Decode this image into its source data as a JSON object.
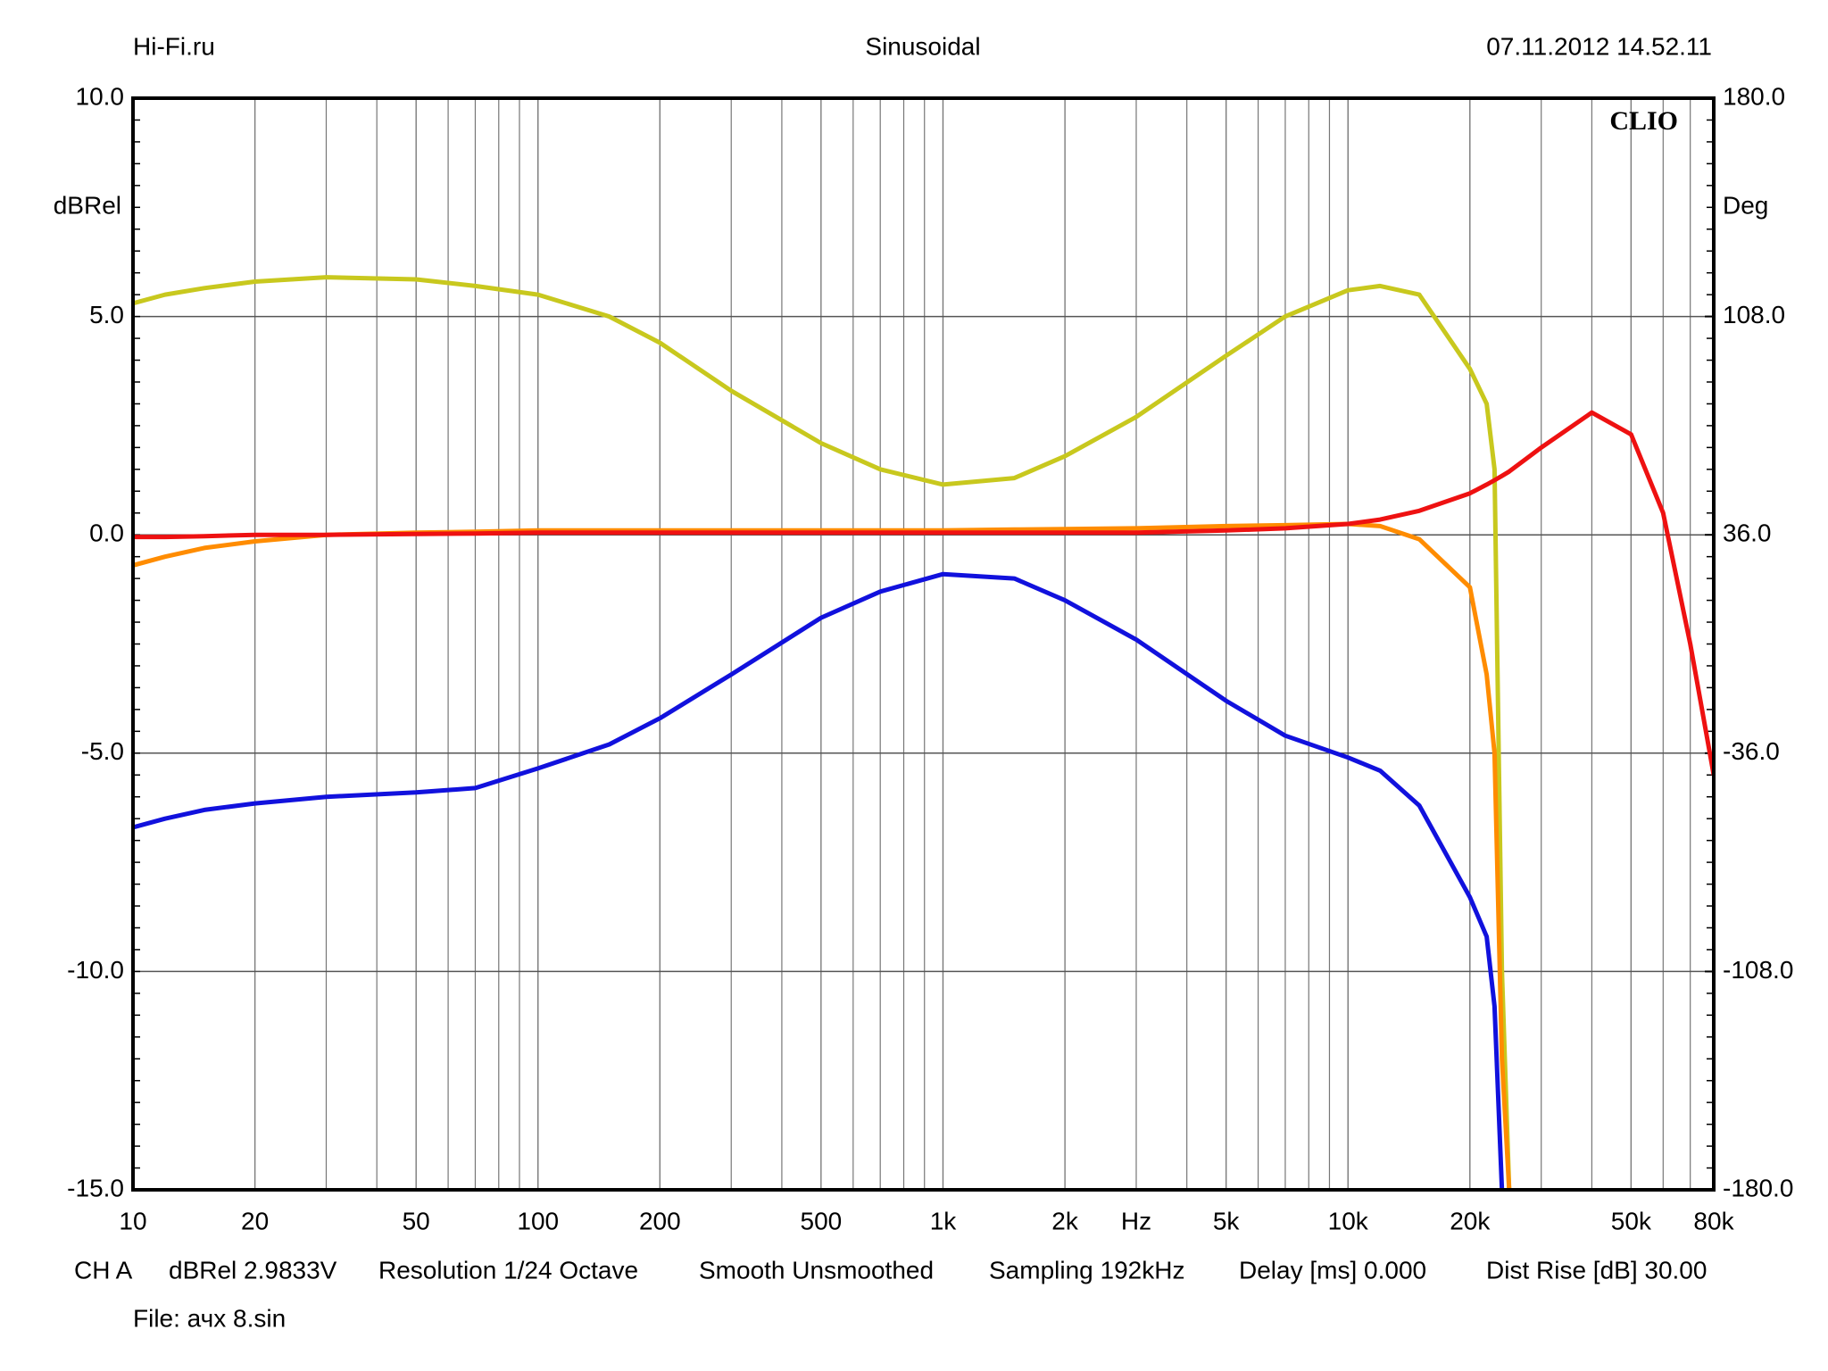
{
  "header": {
    "left": "Hi-Fi.ru",
    "center": "Sinusoidal",
    "right": "07.11.2012 14.52.11"
  },
  "chart_data": {
    "type": "line",
    "watermark": "CLIO",
    "y_label": "dBRel",
    "y2_label": "Deg",
    "x_label": "Hz",
    "log_x": true,
    "grid": true,
    "x": [
      10,
      12,
      15,
      20,
      30,
      50,
      70,
      100,
      150,
      200,
      300,
      500,
      700,
      1000,
      1500,
      2000,
      3000,
      5000,
      7000,
      10000,
      12000,
      15000,
      20000,
      22000,
      23000,
      24000,
      25000,
      30000,
      40000,
      50000,
      60000,
      70000,
      80000
    ],
    "xlim": [
      10,
      80000
    ],
    "xticks": [
      10,
      20,
      50,
      100,
      200,
      500,
      {
        "value": 1000,
        "label": "1k"
      },
      {
        "value": 2000,
        "label": "2k"
      },
      {
        "value": 5000,
        "label": "5k"
      },
      {
        "value": 10000,
        "label": "10k"
      },
      {
        "value": 20000,
        "label": "20k"
      },
      {
        "value": 50000,
        "label": "50k"
      },
      {
        "value": 80000,
        "label": "80k"
      }
    ],
    "ylim": [
      -15,
      10
    ],
    "yticks": [
      {
        "value": 10,
        "label": "10.0"
      },
      {
        "value": 5,
        "label": "5.0"
      },
      {
        "value": 0,
        "label": "0.0"
      },
      {
        "value": -5,
        "label": "-5.0"
      },
      {
        "value": -10,
        "label": "-10.0"
      },
      {
        "value": -15,
        "label": "-15.0"
      }
    ],
    "y2lim": [
      -180,
      180
    ],
    "y2ticks": [
      {
        "value": 180,
        "label": "180.0"
      },
      {
        "value": 108,
        "label": "108.0"
      },
      {
        "value": 36,
        "label": "36.0"
      },
      {
        "value": -36,
        "label": "-36.0"
      },
      {
        "value": -108,
        "label": "-108.0"
      },
      {
        "value": -180,
        "label": "-180.0"
      }
    ],
    "series": [
      {
        "color": "#c8c81e",
        "values": [
          5.3,
          5.5,
          5.65,
          5.8,
          5.9,
          5.85,
          5.7,
          5.5,
          5.0,
          4.4,
          3.3,
          2.1,
          1.5,
          1.15,
          1.3,
          1.8,
          2.7,
          4.1,
          5.0,
          5.6,
          5.7,
          5.5,
          3.8,
          3.0,
          1.5,
          -10,
          -15,
          null,
          null,
          null,
          null,
          null,
          null
        ]
      },
      {
        "color": "#ff8c00",
        "values": [
          -0.7,
          -0.5,
          -0.3,
          -0.15,
          0,
          0.05,
          0.07,
          0.1,
          0.1,
          0.1,
          0.1,
          0.1,
          0.1,
          0.1,
          0.12,
          0.13,
          0.15,
          0.2,
          0.22,
          0.25,
          0.2,
          -0.1,
          -1.2,
          -3.2,
          -5,
          -12,
          -15,
          null,
          null,
          null,
          null,
          null,
          null
        ]
      },
      {
        "color": "#ee1111",
        "values": [
          -0.05,
          -0.05,
          -0.03,
          0,
          0,
          0.02,
          0.03,
          0.05,
          0.05,
          0.05,
          0.05,
          0.05,
          0.05,
          0.05,
          0.05,
          0.05,
          0.05,
          0.1,
          0.15,
          0.25,
          0.35,
          0.55,
          0.95,
          1.15,
          1.25,
          1.35,
          1.45,
          2.0,
          2.8,
          2.3,
          0.5,
          -2.5,
          -5.5
        ]
      },
      {
        "color": "#1111dd",
        "values": [
          -6.7,
          -6.5,
          -6.3,
          -6.15,
          -6.0,
          -5.9,
          -5.8,
          -5.35,
          -4.8,
          -4.2,
          -3.2,
          -1.9,
          -1.3,
          -0.9,
          -1.0,
          -1.5,
          -2.4,
          -3.8,
          -4.6,
          -5.1,
          -5.4,
          -6.2,
          -8.3,
          -9.2,
          -10.8,
          -15,
          null,
          null,
          null,
          null,
          null,
          null,
          null
        ]
      }
    ]
  },
  "footer": {
    "items": [
      "CH A",
      "dBRel 2.9833V",
      "Resolution 1/24 Octave",
      "Smooth Unsmoothed",
      "Sampling 192kHz",
      "Delay [ms] 0.000",
      "Dist Rise [dB] 30.00"
    ],
    "file": "File: ачх 8.sin"
  }
}
